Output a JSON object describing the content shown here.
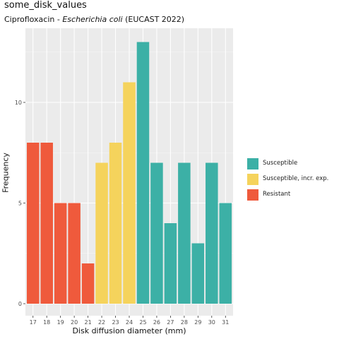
{
  "chart_data": {
    "type": "bar",
    "title": "some_disk_values",
    "subtitle": {
      "prefix": "Ciprofloxacin - ",
      "organism": "Escherichia coli",
      "suffix": " (EUCAST 2022)"
    },
    "xlabel": "Disk diffusion diameter (mm)",
    "ylabel": "Frequency",
    "categories": [
      "17",
      "18",
      "19",
      "20",
      "21",
      "22",
      "23",
      "24",
      "25",
      "26",
      "27",
      "28",
      "29",
      "30",
      "31"
    ],
    "values": [
      8,
      8,
      5,
      5,
      2,
      7,
      8,
      11,
      13,
      7,
      4,
      7,
      3,
      7,
      5
    ],
    "interpretation": [
      "Resistant",
      "Resistant",
      "Resistant",
      "Resistant",
      "Resistant",
      "Susceptible, incr. exp.",
      "Susceptible, incr. exp.",
      "Susceptible, incr. exp.",
      "Susceptible",
      "Susceptible",
      "Susceptible",
      "Susceptible",
      "Susceptible",
      "Susceptible",
      "Susceptible"
    ],
    "ylim": [
      0,
      14
    ],
    "yticks": [
      "0",
      "5",
      "10"
    ],
    "grid": true,
    "legend_position": "right",
    "legend": [
      {
        "label": "Susceptible",
        "color": "#3cb0a6"
      },
      {
        "label": "Susceptible, incr. exp.",
        "color": "#f5d35c"
      },
      {
        "label": "Resistant",
        "color": "#ef5a3c"
      }
    ],
    "panel_background": "#ebebeb"
  }
}
